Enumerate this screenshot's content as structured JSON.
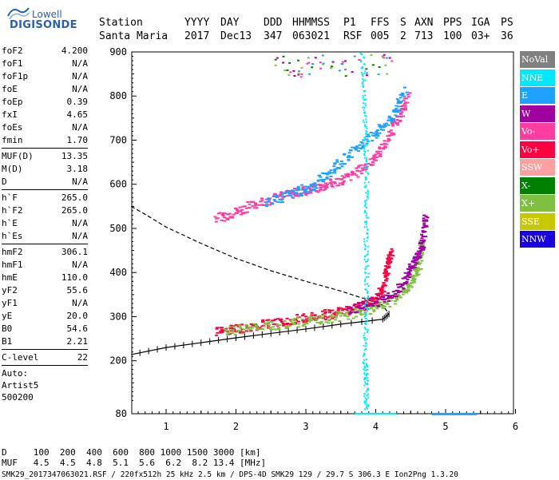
{
  "logo": {
    "top": "Lowell",
    "main": "DIGISONDE"
  },
  "header": {
    "row1": [
      "Station",
      "YYYY",
      "DAY",
      "DDD",
      "HHMMSS",
      "P1",
      "FFS",
      "S",
      "AXN",
      "PPS",
      "IGA",
      "PS"
    ],
    "row2": [
      "Santa Maria",
      "2017",
      "Dec13",
      "347",
      "063021",
      "RSF",
      "005",
      "2",
      "713",
      "100",
      "03+",
      "36"
    ]
  },
  "params": [
    {
      "label": "foF2",
      "value": "4.200"
    },
    {
      "label": "foF1",
      "value": "N/A"
    },
    {
      "label": "foF1p",
      "value": "N/A"
    },
    {
      "label": "foE",
      "value": "N/A"
    },
    {
      "label": "foEp",
      "value": "0.39"
    },
    {
      "label": "fxI",
      "value": "4.65"
    },
    {
      "label": "foEs",
      "value": "N/A"
    },
    {
      "label": "fmin",
      "value": "1.70"
    },
    {
      "label": "MUF(D)",
      "value": "13.35"
    },
    {
      "label": "M(D)",
      "value": "3.18"
    },
    {
      "label": "D",
      "value": "N/A"
    },
    {
      "label": "h`F",
      "value": "265.0"
    },
    {
      "label": "h`F2",
      "value": "265.0"
    },
    {
      "label": "h`E",
      "value": "N/A"
    },
    {
      "label": "h`Es",
      "value": "N/A"
    },
    {
      "label": "hmF2",
      "value": "306.1"
    },
    {
      "label": "hmF1",
      "value": "N/A"
    },
    {
      "label": "hmE",
      "value": "110.0"
    },
    {
      "label": "yF2",
      "value": "55.6"
    },
    {
      "label": "yF1",
      "value": "N/A"
    },
    {
      "label": "yE",
      "value": "20.0"
    },
    {
      "label": "B0",
      "value": "54.6"
    },
    {
      "label": "B1",
      "value": "2.21"
    },
    {
      "label": "C-level",
      "value": "22"
    }
  ],
  "autoscale": {
    "line1": "Auto:",
    "line2": "Artist5",
    "line3": "500200"
  },
  "legend": [
    {
      "label": "NoVal",
      "color": "#808080"
    },
    {
      "label": "NNE",
      "color": "#00e8ff"
    },
    {
      "label": "E",
      "color": "#1ea0ff"
    },
    {
      "label": "W",
      "color": "#a000a0"
    },
    {
      "label": "Vo-",
      "color": "#ff3ca0"
    },
    {
      "label": "Vo+",
      "color": "#ff0040"
    },
    {
      "label": "SSW",
      "color": "#ffa0a0"
    },
    {
      "label": "X-",
      "color": "#008000"
    },
    {
      "label": "X+",
      "color": "#80c040"
    },
    {
      "label": "SSE",
      "color": "#c8c800"
    },
    {
      "label": "NNW",
      "color": "#1a00e0"
    }
  ],
  "chart_data": {
    "type": "scatter",
    "xlabel": "",
    "ylabel": "",
    "xlim": [
      0.5,
      6
    ],
    "ylim": [
      80,
      900
    ],
    "xticks": [
      "1",
      "2",
      "3",
      "4",
      "5",
      "6"
    ],
    "yticks": [
      "80",
      "200",
      "300",
      "400",
      "500",
      "600",
      "700",
      "800",
      "900"
    ],
    "series": [
      {
        "color": "#ff0040",
        "points": [
          [
            1.7,
            268
          ],
          [
            2.0,
            275
          ],
          [
            2.4,
            284
          ],
          [
            2.8,
            294
          ],
          [
            3.2,
            304
          ],
          [
            3.5,
            314
          ],
          [
            3.8,
            326
          ],
          [
            4.0,
            342
          ],
          [
            4.1,
            375
          ],
          [
            4.15,
            420
          ],
          [
            4.2,
            450
          ]
        ]
      },
      {
        "color": "#80c040",
        "points": [
          [
            1.8,
            267
          ],
          [
            2.3,
            278
          ],
          [
            2.8,
            288
          ],
          [
            3.3,
            298
          ],
          [
            3.7,
            310
          ],
          [
            4.0,
            322
          ],
          [
            4.3,
            345
          ],
          [
            4.5,
            378
          ],
          [
            4.6,
            420
          ],
          [
            4.65,
            470
          ]
        ]
      },
      {
        "color": "#a000a0",
        "points": [
          [
            3.6,
            318
          ],
          [
            4.0,
            336
          ],
          [
            4.3,
            360
          ],
          [
            4.45,
            400
          ],
          [
            4.55,
            430
          ],
          [
            4.65,
            470
          ],
          [
            4.7,
            530
          ]
        ]
      },
      {
        "color": "#ff3ca0",
        "points": [
          [
            1.7,
            525
          ],
          [
            2.0,
            540
          ],
          [
            2.3,
            560
          ],
          [
            2.7,
            578
          ],
          [
            3.0,
            588
          ],
          [
            3.3,
            600
          ],
          [
            3.6,
            618
          ],
          [
            3.9,
            650
          ],
          [
            4.1,
            690
          ],
          [
            4.3,
            750
          ],
          [
            4.45,
            800
          ]
        ]
      },
      {
        "color": "#1ea0ff",
        "points": [
          [
            2.4,
            560
          ],
          [
            2.8,
            580
          ],
          [
            3.1,
            600
          ],
          [
            3.4,
            640
          ],
          [
            3.7,
            680
          ],
          [
            4.0,
            720
          ],
          [
            4.25,
            760
          ],
          [
            4.4,
            820
          ]
        ]
      },
      {
        "color": "#00e8ff",
        "points": [
          [
            3.8,
            900
          ],
          [
            3.82,
            800
          ],
          [
            3.85,
            700
          ],
          [
            3.86,
            600
          ],
          [
            3.85,
            500
          ],
          [
            3.86,
            400
          ],
          [
            3.85,
            300
          ],
          [
            3.84,
            200
          ],
          [
            3.85,
            150
          ],
          [
            3.86,
            90
          ]
        ]
      }
    ],
    "profile_curve": [
      [
        0.5,
        550
      ],
      [
        0.7,
        532
      ],
      [
        1.0,
        503
      ],
      [
        1.5,
        466
      ],
      [
        2.0,
        432
      ],
      [
        2.5,
        404
      ],
      [
        3.0,
        380
      ],
      [
        3.5,
        358
      ],
      [
        3.85,
        340
      ],
      [
        4.1,
        326
      ],
      [
        4.19,
        306
      ],
      [
        4.1,
        294
      ],
      [
        3.5,
        283
      ],
      [
        3.0,
        272
      ],
      [
        2.5,
        262
      ],
      [
        2.0,
        252
      ],
      [
        1.5,
        241
      ],
      [
        1.0,
        230
      ],
      [
        0.5,
        214
      ]
    ],
    "dashed_upper": true
  },
  "bottom": {
    "d_line": "D     100  200  400  600  800 1000 1500 3000 [km]",
    "muf_line": "MUF   4.5  4.5  4.8  5.1  5.6  6.2  8.2 13.4 [MHz]",
    "footer": "SMK29_2017347063021.RSF / 220fx512h 25 kHz 2.5 km / DPS-4D SMK29 129 / 29.7 S 306.3 E Ion2Png 1.3.20"
  }
}
